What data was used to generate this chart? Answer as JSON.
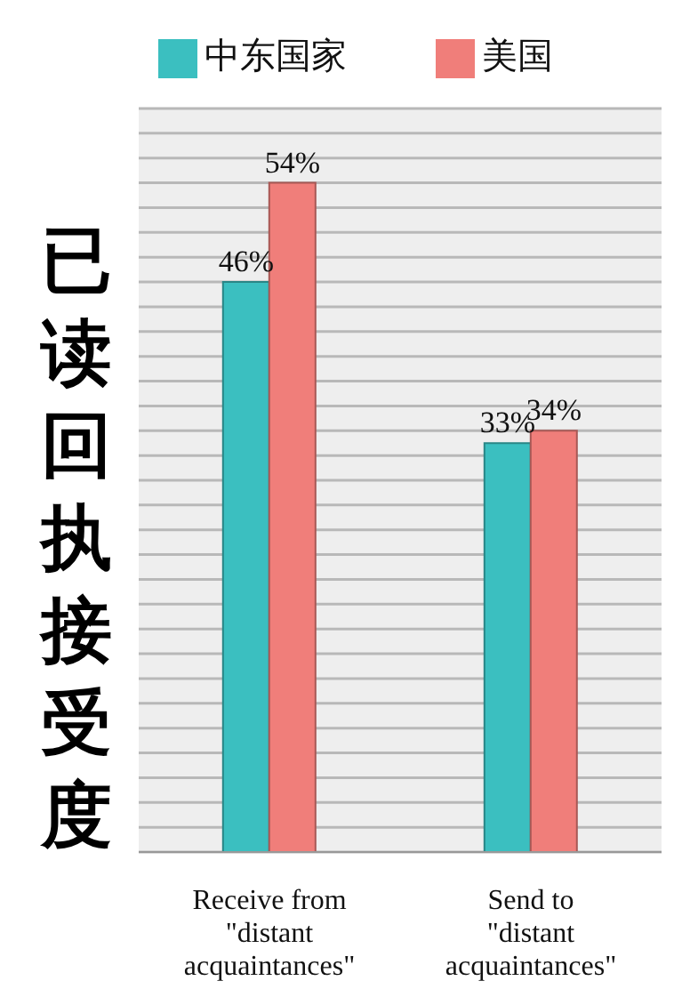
{
  "chart_data": {
    "type": "bar",
    "ylabel": "已读回执接受度",
    "categories": [
      "Receive from \"distant acquaintances\"",
      "Send to \"distant acquaintances\""
    ],
    "series": [
      {
        "name": "中东国家",
        "color": "#3bbfc0",
        "values": [
          46,
          33
        ],
        "value_labels": [
          "46%",
          "33%"
        ]
      },
      {
        "name": "美国",
        "color": "#f07e7a",
        "values": [
          54,
          34
        ],
        "value_labels": [
          "54%",
          "34%"
        ]
      }
    ],
    "tick_labels": "x",
    "grid": "y",
    "legend": "top"
  }
}
